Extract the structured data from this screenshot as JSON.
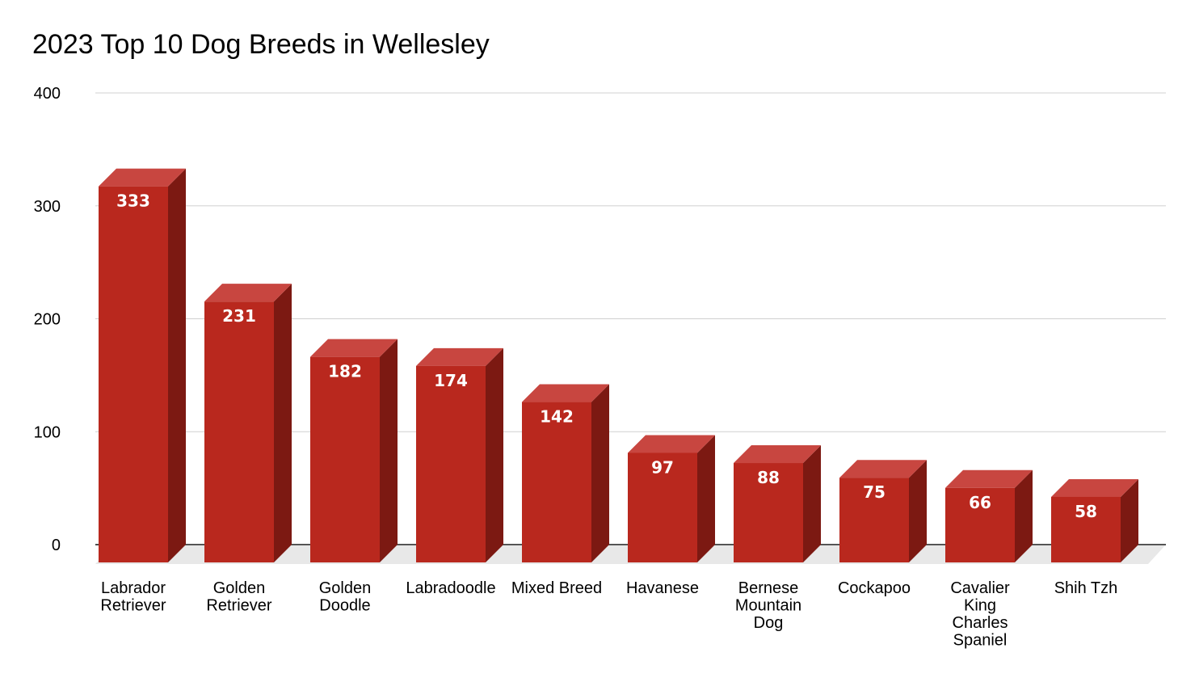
{
  "chart_data": {
    "type": "bar",
    "title": "2023 Top 10 Dog Breeds in Wellesley",
    "categories": [
      "Labrador Retriever",
      "Golden Retriever",
      "Golden Doodle",
      "Labradoodle",
      "Mixed Breed",
      "Havanese",
      "Bernese Mountain Dog",
      "Cockapoo",
      "Cavalier King Charles Spaniel",
      "Shih Tzh"
    ],
    "category_label_lines": [
      [
        "Labrador",
        "Retriever"
      ],
      [
        "Golden",
        "Retriever"
      ],
      [
        "Golden",
        "Doodle"
      ],
      [
        "Labradoodle"
      ],
      [
        "Mixed Breed"
      ],
      [
        "Havanese"
      ],
      [
        "Bernese",
        "Mountain",
        "Dog"
      ],
      [
        "Cockapoo"
      ],
      [
        "Cavalier",
        "King",
        "Charles",
        "Spaniel"
      ],
      [
        "Shih Tzh"
      ]
    ],
    "values": [
      333,
      231,
      182,
      174,
      142,
      97,
      88,
      75,
      66,
      58
    ],
    "ylim": [
      0,
      400
    ],
    "yticks": [
      0,
      100,
      200,
      300,
      400
    ],
    "grid": true,
    "legend": "none",
    "style": "3d",
    "colors": {
      "bar_front": "#b9281e",
      "bar_top": "#c84640",
      "bar_side": "#7c1912",
      "floor": "#e8e8e8",
      "grid": "#d0d0d0",
      "axis": "#333333"
    }
  }
}
